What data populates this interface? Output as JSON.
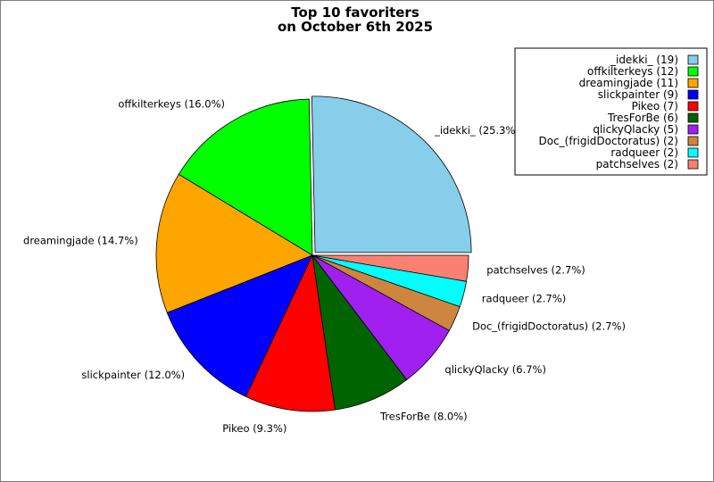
{
  "chart_data": {
    "type": "pie",
    "title_lines": [
      "Top 10 favoriters",
      "on October 6th 2025"
    ],
    "slices": [
      {
        "name": "_idekki_",
        "value": 19,
        "percent_label": "_idekki_ (25.3%)",
        "legend_label": "_idekki_ (19)",
        "color": "#87ceeb"
      },
      {
        "name": "offkilterkeys",
        "value": 12,
        "percent_label": "offkilterkeys (16.0%)",
        "legend_label": "offkilterkeys (12)",
        "color": "#00ff00"
      },
      {
        "name": "dreamingjade",
        "value": 11,
        "percent_label": "dreamingjade (14.7%)",
        "legend_label": "dreamingjade (11)",
        "color": "#ffa500"
      },
      {
        "name": "slickpainter",
        "value": 9,
        "percent_label": "slickpainter (12.0%)",
        "legend_label": "slickpainter (9)",
        "color": "#0000ff"
      },
      {
        "name": "Pikeo",
        "value": 7,
        "percent_label": "Pikeo (9.3%)",
        "legend_label": "Pikeo (7)",
        "color": "#ff0000"
      },
      {
        "name": "TresForBe",
        "value": 6,
        "percent_label": "TresForBe (8.0%)",
        "legend_label": "TresForBe (6)",
        "color": "#006400"
      },
      {
        "name": "qlickyQlacky",
        "value": 5,
        "percent_label": "qlickyQlacky (6.7%)",
        "legend_label": "qlickyQlacky (5)",
        "color": "#a020f0"
      },
      {
        "name": "Doc_(frigidDoctoratus)",
        "value": 2,
        "percent_label": "Doc_(frigidDoctoratus) (2.7%)",
        "legend_label": "Doc_(frigidDoctoratus) (2)",
        "color": "#cd853f"
      },
      {
        "name": "radqueer",
        "value": 2,
        "percent_label": "radqueer (2.7%)",
        "legend_label": "radqueer (2)",
        "color": "#00ffff"
      },
      {
        "name": "patchselves",
        "value": 2,
        "percent_label": "patchselves (2.7%)",
        "legend_label": "patchselves (2)",
        "color": "#fa8072"
      }
    ],
    "legend_position": "top-right",
    "start_angle": "0 degrees (3 o'clock), counter-clockwise",
    "first_slice_exploded": true
  }
}
